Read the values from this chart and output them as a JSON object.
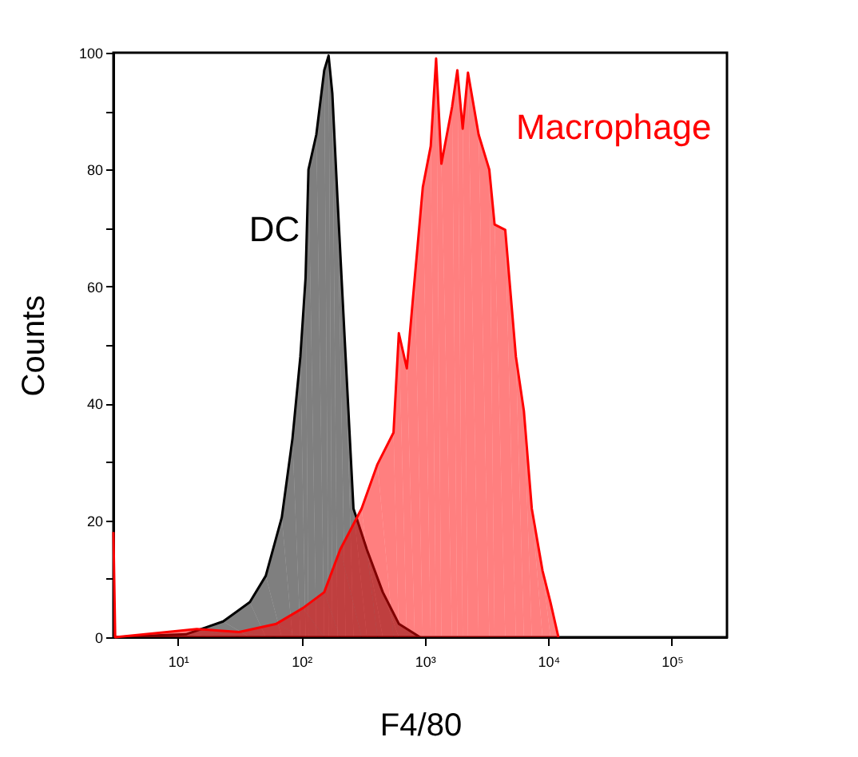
{
  "chart_data": {
    "type": "area",
    "xlabel": "F4/80",
    "ylabel": "Counts",
    "log": "x",
    "grid": false,
    "legend": false,
    "xlim": [
      3,
      280000
    ],
    "xticks": [
      {
        "value": 10,
        "label": "10¹"
      },
      {
        "value": 100,
        "label": "10²"
      },
      {
        "value": 1000,
        "label": "10³"
      },
      {
        "value": 10000,
        "label": "10⁴"
      },
      {
        "value": 100000,
        "label": "10⁵"
      }
    ],
    "ylim": [
      0,
      100
    ],
    "yticks": [
      0,
      {
        "value": 10,
        "label": null
      },
      20,
      {
        "value": 30,
        "label": null
      },
      40,
      {
        "value": 50,
        "label": null
      },
      60,
      {
        "value": 70,
        "label": null
      },
      80,
      {
        "value": 90,
        "label": null
      },
      100
    ],
    "series": [
      {
        "name": "DC",
        "color": "#000000",
        "x": [
          3,
          11.6,
          23.2,
          38.2,
          51.4,
          69.3,
          84.6,
          98,
          108,
          114,
          132,
          153,
          166,
          178,
          196,
          228,
          264,
          339,
          456,
          615,
          914
        ],
        "values": [
          0,
          0.5,
          2.7,
          6,
          10.5,
          20.5,
          34,
          48,
          61.5,
          80,
          86,
          97,
          99.5,
          93,
          75,
          48,
          22,
          15,
          7.7,
          2.3,
          0
        ]
      },
      {
        "name": "Macrophage",
        "color": "#ff0000",
        "x": [
          3,
          3.1,
          14.2,
          31.3,
          62.7,
          103,
          153,
          206,
          307,
          413,
          557,
          615,
          714,
          828,
          962,
          1115,
          1233,
          1361,
          1660,
          1832,
          2024,
          2234,
          2725,
          3325,
          3670,
          4477,
          5461,
          6339,
          7346,
          8970,
          10400,
          12070
        ],
        "values": [
          18,
          0,
          1.4,
          0.9,
          2.3,
          5,
          7.7,
          15,
          22,
          29.6,
          35,
          52,
          46,
          61.5,
          77,
          84,
          99,
          81,
          90.7,
          97,
          87,
          96.6,
          86,
          80,
          70.6,
          69.7,
          48,
          38.7,
          22,
          11.4,
          6,
          0
        ]
      }
    ]
  }
}
